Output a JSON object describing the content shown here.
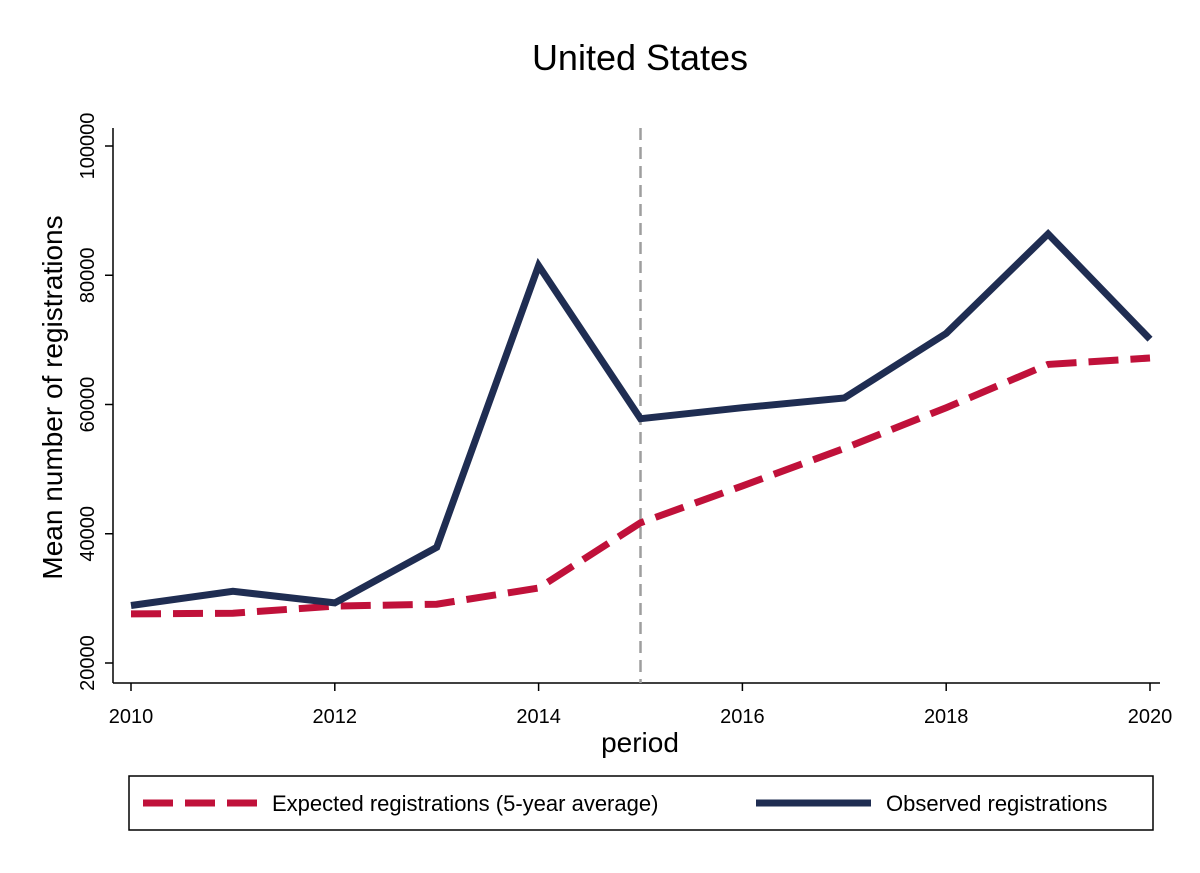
{
  "chart_data": {
    "type": "line",
    "title": "United States",
    "xlabel": "period",
    "ylabel": "Mean number of registrations",
    "xlim": [
      2010,
      2020
    ],
    "ylim": [
      20000,
      100000
    ],
    "x_ticks": [
      2010,
      2012,
      2014,
      2016,
      2018,
      2020
    ],
    "y_ticks": [
      20000,
      40000,
      60000,
      80000,
      100000
    ],
    "reference_line_x": 2015,
    "grid": false,
    "legend_position": "bottom",
    "series": [
      {
        "name": "Expected registrations (5-year average)",
        "style": "dashed",
        "color": "#c0113a",
        "x": [
          2010,
          2011,
          2012,
          2013,
          2014,
          2015,
          2016,
          2017,
          2018,
          2019,
          2020
        ],
        "y": [
          27600,
          27700,
          28800,
          29100,
          31600,
          41700,
          47400,
          53200,
          59500,
          66200,
          67200
        ]
      },
      {
        "name": "Observed registrations",
        "style": "solid",
        "color": "#1f2d52",
        "x": [
          2010,
          2011,
          2012,
          2013,
          2014,
          2015,
          2016,
          2017,
          2018,
          2019,
          2020
        ],
        "y": [
          28900,
          31100,
          29300,
          37900,
          81500,
          57800,
          59500,
          61000,
          71000,
          86400,
          70100
        ]
      }
    ]
  }
}
